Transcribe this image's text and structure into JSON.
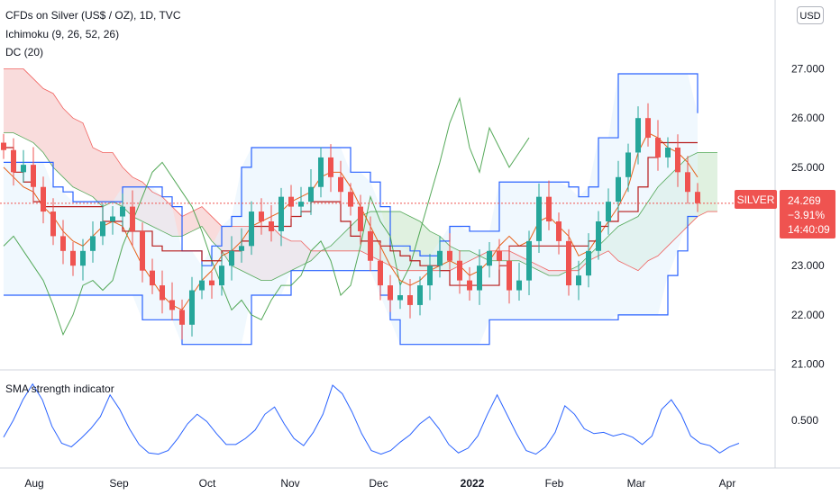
{
  "header": {
    "title": "CFDs on Silver (US$ / OZ), 1D, TVC",
    "indicator_1": "Ichimoku (9, 26, 52, 26)",
    "indicator_2": "DC (20)",
    "currency_button": "USD"
  },
  "lower_pane": {
    "title": "SMA strength indicator"
  },
  "price_badge": {
    "symbol": "SILVER",
    "price": "24.269",
    "change": "−3.91%",
    "countdown": "14:40:09"
  },
  "colors": {
    "up": "#26a69a",
    "down": "#ef5350",
    "donchian": "#2962ff",
    "kijun": "#b71c1c",
    "tenkan": "#e65100",
    "chikou": "#43a047",
    "cloud_bull": "#a5d6a7",
    "cloud_bear": "#ef9a9a",
    "dc_fill": "#e3f2fd",
    "sma": "#2962ff",
    "badge": "#ef5350"
  },
  "chart_data": [
    {
      "type": "candlestick",
      "title": "CFDs on Silver (US$ / OZ), 1D, TVC",
      "yticks": [
        "21.000",
        "22.000",
        "23.000",
        "24.000",
        "25.000",
        "26.000",
        "27.000"
      ],
      "ylim": [
        20.9,
        28.4
      ],
      "xticks": [
        "Aug",
        "Sep",
        "Oct",
        "Nov",
        "Dec",
        "2022",
        "Feb",
        "Mar",
        "Apr"
      ],
      "series": [
        {
          "name": "Close",
          "values": [
            25.35,
            24.9,
            25.05,
            24.6,
            24.1,
            23.6,
            23.3,
            23.0,
            23.3,
            23.6,
            23.9,
            24.0,
            24.2,
            23.7,
            22.9,
            22.6,
            22.3,
            22.1,
            21.8,
            22.5,
            22.7,
            22.6,
            23.0,
            23.3,
            23.4,
            24.1,
            23.9,
            23.7,
            24.4,
            24.2,
            24.3,
            24.6,
            25.2,
            24.8,
            24.5,
            24.2,
            23.7,
            23.1,
            22.6,
            22.3,
            22.4,
            22.2,
            22.6,
            23.0,
            23.3,
            23.1,
            22.7,
            22.5,
            23.0,
            23.3,
            23.1,
            22.5,
            22.7,
            23.5,
            24.4,
            23.9,
            23.5,
            22.6,
            22.8,
            23.3,
            23.9,
            24.3,
            24.8,
            25.3,
            26.0,
            25.6,
            25.2,
            25.4,
            24.9,
            24.5,
            24.269
          ]
        },
        {
          "name": "Donchian Upper",
          "values": [
            25.1,
            25.1,
            25.1,
            25.1,
            25.1,
            24.6,
            24.5,
            24.3,
            24.3,
            24.3,
            24.3,
            24.3,
            24.6,
            24.6,
            24.6,
            24.6,
            24.4,
            24.2,
            23.3,
            23.3,
            23.0,
            23.4,
            23.8,
            24.0,
            25.0,
            25.4,
            25.4,
            25.4,
            25.4,
            25.4,
            25.4,
            25.4,
            25.4,
            25.4,
            25.4,
            24.9,
            24.9,
            24.7,
            24.2,
            23.4,
            23.4,
            23.3,
            23.2,
            23.2,
            23.5,
            23.8,
            23.8,
            23.7,
            23.7,
            23.7,
            24.7,
            24.7,
            24.7,
            24.7,
            24.7,
            24.7,
            24.7,
            24.6,
            24.4,
            24.6,
            25.6,
            25.6,
            26.9,
            26.9,
            26.9,
            26.9,
            26.9,
            26.9,
            26.9,
            26.9,
            26.1
          ]
        },
        {
          "name": "Donchian Lower",
          "values": [
            22.4,
            22.4,
            22.4,
            22.4,
            22.4,
            22.4,
            22.4,
            22.4,
            22.4,
            22.4,
            22.4,
            22.4,
            22.4,
            22.4,
            21.9,
            21.9,
            21.9,
            21.9,
            21.4,
            21.4,
            21.4,
            21.4,
            21.4,
            21.4,
            21.4,
            22.4,
            22.4,
            22.4,
            22.4,
            22.9,
            22.9,
            22.9,
            22.9,
            22.9,
            22.9,
            22.9,
            22.9,
            22.9,
            22.4,
            21.9,
            21.4,
            21.4,
            21.4,
            21.4,
            21.4,
            21.4,
            21.4,
            21.4,
            21.4,
            21.9,
            21.9,
            21.9,
            21.9,
            21.9,
            21.9,
            21.9,
            21.9,
            21.9,
            21.9,
            21.9,
            21.9,
            21.9,
            22.0,
            22.0,
            22.0,
            22.0,
            22.0,
            22.8,
            23.3,
            24.0,
            24.0
          ]
        },
        {
          "name": "Kijun",
          "values": [
            25.4,
            24.9,
            24.7,
            24.3,
            24.2,
            24.2,
            24.2,
            24.2,
            24.2,
            24.2,
            23.9,
            23.9,
            23.7,
            23.7,
            23.7,
            23.4,
            23.3,
            23.3,
            23.3,
            23.3,
            23.1,
            23.1,
            23.3,
            23.3,
            23.5,
            23.8,
            23.8,
            23.8,
            23.8,
            24.0,
            24.1,
            24.3,
            24.3,
            24.3,
            23.9,
            23.6,
            23.5,
            23.5,
            23.4,
            23.3,
            23.2,
            23.1,
            23.0,
            23.0,
            22.9,
            22.6,
            22.6,
            22.6,
            22.6,
            22.6,
            23.0,
            23.4,
            23.4,
            23.4,
            23.4,
            23.4,
            23.4,
            23.4,
            23.4,
            23.5,
            23.8,
            23.9,
            24.1,
            24.1,
            24.6,
            25.2,
            25.5,
            25.5,
            25.5,
            25.5,
            25.5
          ]
        },
        {
          "name": "Tenkan",
          "values": [
            25.0,
            24.8,
            24.6,
            24.5,
            24.2,
            24.0,
            23.7,
            23.5,
            23.4,
            23.6,
            23.8,
            23.9,
            23.8,
            23.4,
            23.0,
            22.7,
            22.4,
            22.2,
            22.1,
            22.4,
            22.7,
            22.9,
            23.2,
            23.3,
            23.5,
            23.8,
            23.9,
            24.0,
            24.1,
            24.3,
            24.4,
            24.5,
            24.8,
            24.9,
            24.9,
            24.6,
            24.2,
            23.8,
            23.4,
            23.0,
            22.7,
            22.6,
            22.7,
            22.9,
            23.0,
            23.1,
            23.0,
            22.8,
            22.9,
            23.1,
            23.4,
            23.6,
            23.4,
            23.5,
            23.9,
            24.0,
            23.8,
            23.6,
            23.2,
            23.3,
            23.6,
            23.9,
            24.2,
            24.6,
            25.3,
            25.7,
            25.6,
            25.4,
            25.3,
            25.1,
            24.8
          ]
        },
        {
          "name": "Chikou",
          "values": [
            23.4,
            23.6,
            23.3,
            23.0,
            22.7,
            22.2,
            21.6,
            22.0,
            22.6,
            22.7,
            22.5,
            22.7,
            23.4,
            23.9,
            24.4,
            24.9,
            25.1,
            24.8,
            24.5,
            24.2,
            23.7,
            23.1,
            22.6,
            22.1,
            22.3,
            22.0,
            21.9,
            22.3,
            22.6,
            22.6,
            22.8,
            23.3,
            23.5,
            23.1,
            22.4,
            22.6,
            23.4,
            24.4,
            23.9,
            23.6,
            22.6,
            23.0,
            23.7,
            24.4,
            25.1,
            25.9,
            26.4,
            25.4,
            24.9,
            25.8,
            25.4,
            25.0,
            25.3,
            25.6
          ]
        },
        {
          "name": "Senkou A",
          "values": [
            25.7,
            25.7,
            25.6,
            25.5,
            25.3,
            25.0,
            24.8,
            24.6,
            24.5,
            24.4,
            24.2,
            24.3,
            24.2,
            24.0,
            23.9,
            23.8,
            23.7,
            23.6,
            23.6,
            23.7,
            23.8,
            23.5,
            23.3,
            23.0,
            22.9,
            22.8,
            22.7,
            22.7,
            22.8,
            22.9,
            23.0,
            23.1,
            23.3,
            23.4,
            23.6,
            23.8,
            24.0,
            24.1,
            24.1,
            24.1,
            24.1,
            24.0,
            23.9,
            23.7,
            23.6,
            23.4,
            23.3,
            23.3,
            23.2,
            23.1,
            23.1,
            23.1,
            23.1,
            23.0,
            22.9,
            22.8,
            22.8,
            22.9,
            23.0,
            23.2,
            23.4,
            23.6,
            23.8,
            23.9,
            24.0,
            24.3,
            24.6,
            24.8,
            25.0,
            25.2,
            25.3,
            25.3,
            25.3
          ]
        },
        {
          "name": "Senkou B",
          "values": [
            27.0,
            27.0,
            27.0,
            26.8,
            26.6,
            26.5,
            26.2,
            26.0,
            25.9,
            25.4,
            25.3,
            25.3,
            25.0,
            24.8,
            24.7,
            24.5,
            24.4,
            24.2,
            24.0,
            24.1,
            24.2,
            24.0,
            23.8,
            23.8,
            23.8,
            23.8,
            23.8,
            23.8,
            23.6,
            23.5,
            23.5,
            23.3,
            23.3,
            23.3,
            23.3,
            23.3,
            23.3,
            23.2,
            23.1,
            23.0,
            22.9,
            22.9,
            22.9,
            22.9,
            22.9,
            22.9,
            23.0,
            23.1,
            23.2,
            23.3,
            23.3,
            23.3,
            23.2,
            23.1,
            23.0,
            22.9,
            22.9,
            22.9,
            22.9,
            23.1,
            23.2,
            23.3,
            23.1,
            23.0,
            22.9,
            23.1,
            23.2,
            23.4,
            23.6,
            23.8,
            24.0,
            24.1,
            24.1
          ]
        }
      ]
    },
    {
      "type": "line",
      "title": "SMA strength indicator",
      "yticks": [
        "0.500"
      ],
      "series": [
        {
          "name": "SMA strength indicator",
          "values": [
            0.41,
            0.55,
            0.72,
            0.85,
            0.72,
            0.5,
            0.36,
            0.33,
            0.4,
            0.48,
            0.58,
            0.76,
            0.64,
            0.48,
            0.35,
            0.28,
            0.27,
            0.3,
            0.4,
            0.52,
            0.6,
            0.54,
            0.44,
            0.35,
            0.35,
            0.4,
            0.47,
            0.6,
            0.66,
            0.52,
            0.4,
            0.34,
            0.45,
            0.6,
            0.84,
            0.77,
            0.62,
            0.44,
            0.3,
            0.27,
            0.3,
            0.37,
            0.43,
            0.52,
            0.58,
            0.48,
            0.35,
            0.28,
            0.32,
            0.42,
            0.6,
            0.76,
            0.6,
            0.44,
            0.3,
            0.27,
            0.33,
            0.45,
            0.67,
            0.6,
            0.48,
            0.44,
            0.45,
            0.42,
            0.44,
            0.41,
            0.35,
            0.42,
            0.64,
            0.72,
            0.6,
            0.42,
            0.36,
            0.34,
            0.28,
            0.33,
            0.36
          ]
        }
      ]
    }
  ]
}
